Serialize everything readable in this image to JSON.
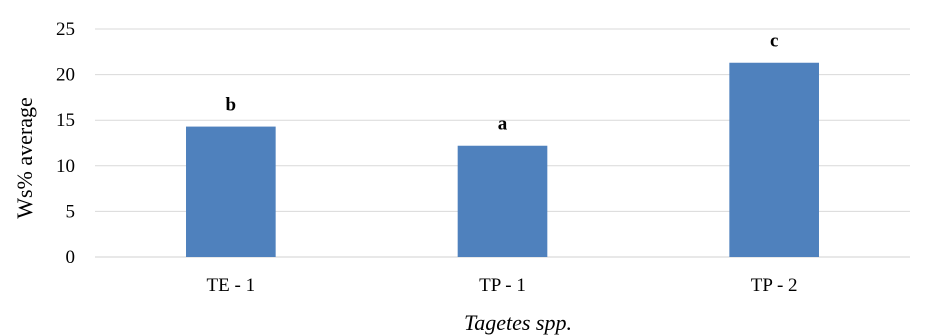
{
  "chart_data": {
    "type": "bar",
    "title": "",
    "xlabel": "Tagetes spp.",
    "ylabel": "Ws% average",
    "categories": [
      "TE - 1",
      "TP - 1",
      "TP - 2"
    ],
    "values": [
      14.3,
      12.2,
      21.3
    ],
    "data_labels": [
      "b",
      "a",
      "c"
    ],
    "ylim": [
      0,
      25
    ],
    "yticks": [
      0,
      5,
      10,
      15,
      20,
      25
    ],
    "grid": true,
    "legend": "none",
    "bar_color": "#4f81bd"
  }
}
